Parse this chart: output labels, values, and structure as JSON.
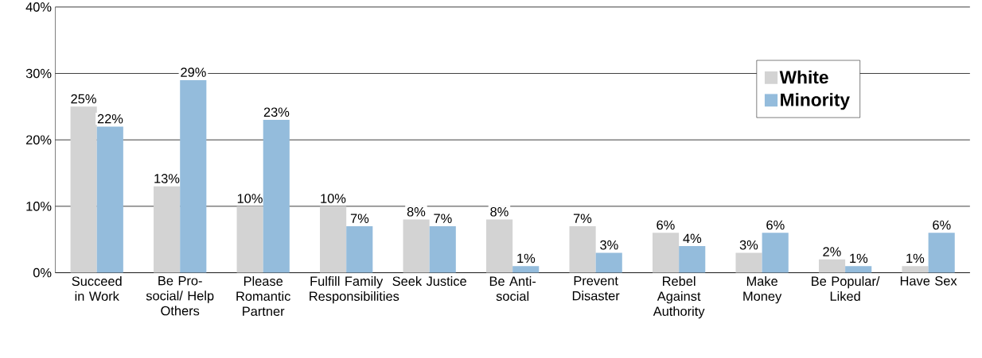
{
  "chart_data": {
    "type": "bar",
    "categories": [
      "Succeed in Work",
      "Be Pro-social/ Help Others",
      "Please Romantic Partner",
      "Fulfill Family Responsibilities",
      "Seek Justice",
      "Be Anti-social",
      "Prevent Disaster",
      "Rebel Against Authority",
      "Make Money",
      "Be Popular/ Liked",
      "Have Sex"
    ],
    "series": [
      {
        "name": "White",
        "color": "#d3d3d3",
        "values": [
          25,
          13,
          10,
          10,
          8,
          8,
          7,
          6,
          3,
          2,
          1
        ],
        "value_labels": [
          "25%",
          "13%",
          "10%",
          "10%",
          "8%",
          "8%",
          "7%",
          "6%",
          "3%",
          "2%",
          "1%"
        ]
      },
      {
        "name": "Minority",
        "color": "#94bcdc",
        "values": [
          22,
          29,
          23,
          7,
          7,
          1,
          3,
          4,
          6,
          1,
          6
        ],
        "value_labels": [
          "22%",
          "29%",
          "23%",
          "7%",
          "7%",
          "1%",
          "3%",
          "4%",
          "6%",
          "1%",
          "6%"
        ]
      }
    ],
    "ylim": [
      0,
      40
    ],
    "yticks": [
      {
        "value": 0,
        "label": "0%"
      },
      {
        "value": 10,
        "label": "10%"
      },
      {
        "value": 20,
        "label": "20%"
      },
      {
        "value": 30,
        "label": "30%"
      },
      {
        "value": 40,
        "label": "40%"
      }
    ],
    "grid": "y",
    "legend": "top right"
  }
}
